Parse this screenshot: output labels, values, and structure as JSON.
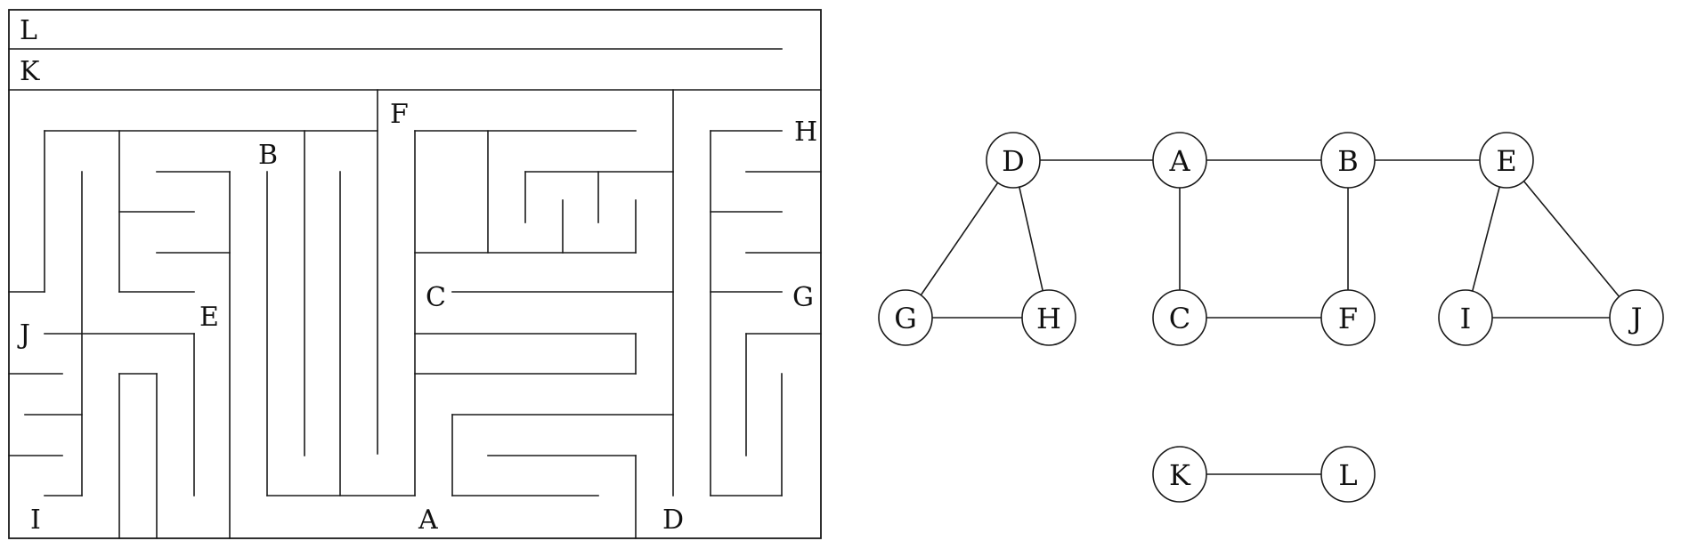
{
  "maze": {
    "labels": {
      "L": "L",
      "K": "K",
      "F": "F",
      "H": "H",
      "B": "B",
      "C": "C",
      "G": "G",
      "J": "J",
      "E": "E",
      "I": "I",
      "A": "A",
      "D": "D"
    }
  },
  "graph": {
    "nodes": [
      {
        "id": "D",
        "label": "D"
      },
      {
        "id": "A",
        "label": "A"
      },
      {
        "id": "B",
        "label": "B"
      },
      {
        "id": "E",
        "label": "E"
      },
      {
        "id": "G",
        "label": "G"
      },
      {
        "id": "H",
        "label": "H"
      },
      {
        "id": "C",
        "label": "C"
      },
      {
        "id": "F",
        "label": "F"
      },
      {
        "id": "I",
        "label": "I"
      },
      {
        "id": "J",
        "label": "J"
      },
      {
        "id": "K",
        "label": "K"
      },
      {
        "id": "L",
        "label": "L"
      }
    ],
    "edges": [
      [
        "D",
        "A"
      ],
      [
        "A",
        "B"
      ],
      [
        "B",
        "E"
      ],
      [
        "D",
        "G"
      ],
      [
        "D",
        "H"
      ],
      [
        "G",
        "H"
      ],
      [
        "A",
        "C"
      ],
      [
        "B",
        "F"
      ],
      [
        "C",
        "F"
      ],
      [
        "E",
        "I"
      ],
      [
        "E",
        "J"
      ],
      [
        "I",
        "J"
      ],
      [
        "K",
        "L"
      ]
    ]
  }
}
